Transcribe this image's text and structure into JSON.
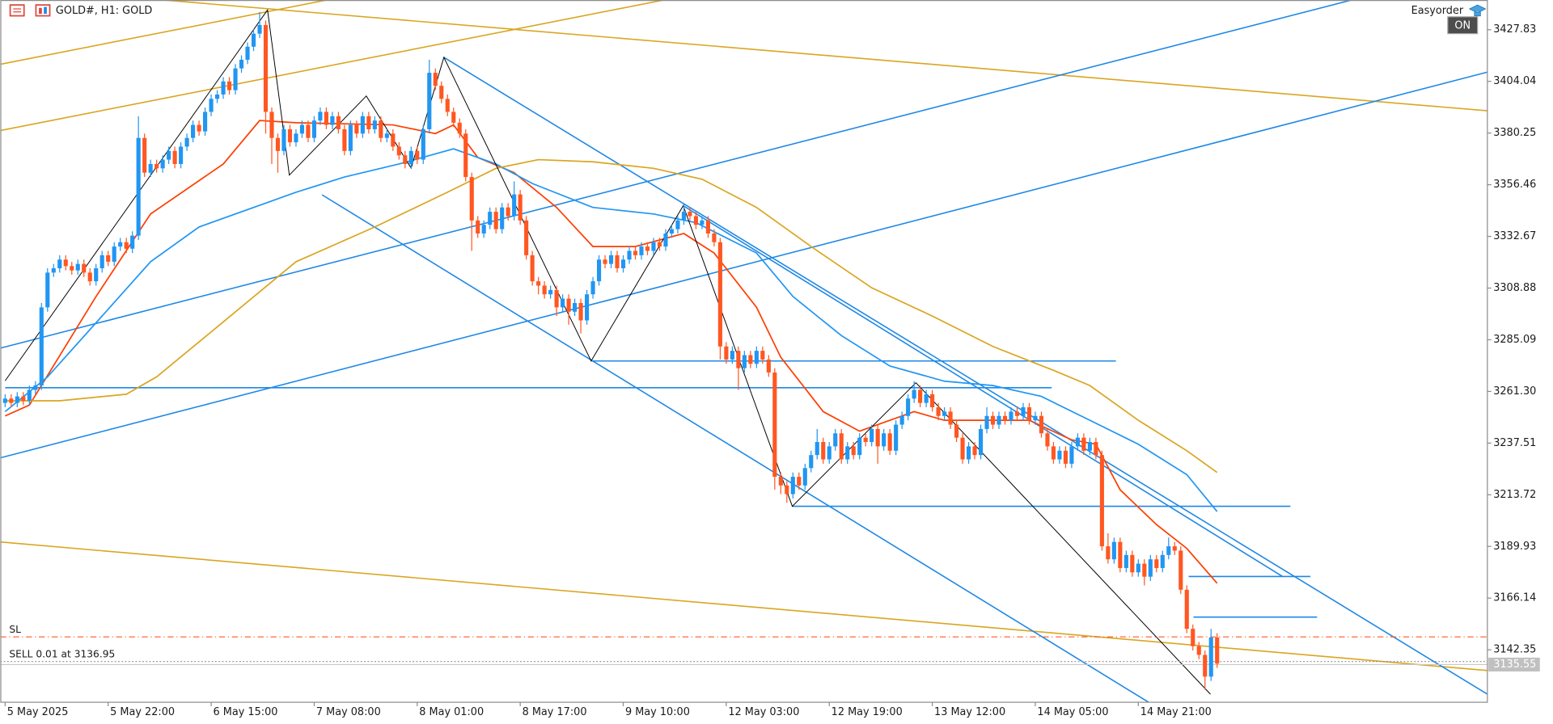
{
  "chart_data": {
    "type": "candlestick",
    "title": "GOLD#, H1:  GOLD",
    "expert": "Easyorder",
    "expert_status": "ON",
    "up_color": "#2196f3",
    "down_color": "#ff5722",
    "xlim": [
      -0.8,
      244.6
    ],
    "ylim": [
      3118.2,
      3441.5
    ],
    "yticks": [
      3427.83,
      3404.04,
      3380.25,
      3356.46,
      3332.67,
      3308.88,
      3285.09,
      {
        "value": 3261.3,
        "label": "3261.30"
      },
      3237.51,
      3213.72,
      3189.93,
      3166.14,
      3142.35
    ],
    "xticks": [
      {
        "value": 0,
        "label": "5 May 2025"
      },
      {
        "value": 17,
        "label": "5 May 22:00"
      },
      {
        "value": 34,
        "label": "6 May 15:00"
      },
      {
        "value": 51,
        "label": "7 May 08:00"
      },
      {
        "value": 68,
        "label": "8 May 01:00"
      },
      {
        "value": 85,
        "label": "8 May 17:00"
      },
      {
        "value": 102,
        "label": "9 May 10:00"
      },
      {
        "value": 119,
        "label": "12 May 03:00"
      },
      {
        "value": 136,
        "label": "12 May 19:00"
      },
      {
        "value": 153,
        "label": "13 May 12:00"
      },
      {
        "value": 170,
        "label": "14 May 05:00"
      },
      {
        "value": 187,
        "label": "14 May 21:00"
      }
    ],
    "current_price": 3135.55,
    "open": [
      3256,
      3258,
      3256,
      3259,
      3257,
      3262,
      3264,
      3300,
      3316,
      3318,
      3322,
      3319,
      3317,
      3320,
      3316,
      3312,
      3318,
      3324,
      3321,
      3328,
      3330,
      3327,
      3333,
      3378,
      3362,
      3366,
      3364,
      3368,
      3372,
      3366,
      3374,
      3378,
      3384,
      3381,
      3390,
      3396,
      3398,
      3404,
      3400,
      3410,
      3414,
      3420,
      3426,
      3430,
      3390,
      3378,
      3372,
      3382,
      3376,
      3380,
      3384,
      3378,
      3386,
      3390,
      3384,
      3388,
      3382,
      3372,
      3384,
      3380,
      3388,
      3382,
      3386,
      3378,
      3380,
      3374,
      3370,
      3366,
      3372,
      3368,
      3382,
      3408,
      3402,
      3396,
      3390,
      3385,
      3380,
      3360,
      3340,
      3334,
      3338,
      3344,
      3336,
      3346,
      3342,
      3352,
      3340,
      3324,
      3312,
      3310,
      3306,
      3308,
      3300,
      3304,
      3298,
      3302,
      3294,
      3306,
      3312,
      3322,
      3320,
      3324,
      3318,
      3322,
      3326,
      3324,
      3328,
      3326,
      3330,
      3328,
      3334,
      3336,
      3340,
      3344,
      3342,
      3338,
      3340,
      3334,
      3330,
      3282,
      3276,
      3280,
      3272,
      3278,
      3274,
      3280,
      3276,
      3270,
      3222,
      3218,
      3214,
      3222,
      3218,
      3226,
      3232,
      3238,
      3230,
      3236,
      3242,
      3230,
      3236,
      3232,
      3240,
      3238,
      3244,
      3236,
      3242,
      3234,
      3246,
      3250,
      3258,
      3262,
      3256,
      3260,
      3254,
      3250,
      3252,
      3246,
      3240,
      3230,
      3236,
      3232,
      3244,
      3250,
      3246,
      3250,
      3248,
      3252,
      3250,
      3254,
      3248,
      3250,
      3242,
      3236,
      3230,
      3234,
      3228,
      3236,
      3240,
      3234,
      3238,
      3232,
      3190,
      3184,
      3192,
      3180,
      3186,
      3178,
      3182,
      3176,
      3184,
      3180,
      3186,
      3190,
      3188,
      3170,
      3152,
      3144,
      3140,
      3130,
      3148
    ],
    "high": [
      3260,
      3260,
      3261,
      3261,
      3264,
      3266,
      3302,
      3318,
      3320,
      3324,
      3324,
      3321,
      3322,
      3322,
      3318,
      3320,
      3326,
      3326,
      3330,
      3332,
      3332,
      3335,
      3388,
      3380,
      3368,
      3368,
      3370,
      3374,
      3374,
      3376,
      3380,
      3386,
      3386,
      3392,
      3398,
      3400,
      3406,
      3406,
      3412,
      3416,
      3422,
      3428,
      3436,
      3432,
      3392,
      3380,
      3384,
      3384,
      3382,
      3386,
      3386,
      3388,
      3392,
      3392,
      3390,
      3390,
      3384,
      3386,
      3386,
      3390,
      3390,
      3388,
      3388,
      3382,
      3382,
      3376,
      3372,
      3374,
      3374,
      3384,
      3414,
      3410,
      3404,
      3398,
      3392,
      3387,
      3382,
      3362,
      3342,
      3340,
      3346,
      3346,
      3348,
      3348,
      3358,
      3354,
      3342,
      3326,
      3314,
      3312,
      3310,
      3310,
      3306,
      3306,
      3304,
      3304,
      3308,
      3314,
      3324,
      3324,
      3326,
      3326,
      3324,
      3328,
      3328,
      3330,
      3330,
      3332,
      3332,
      3336,
      3338,
      3342,
      3348,
      3346,
      3344,
      3342,
      3342,
      3336,
      3332,
      3284,
      3282,
      3282,
      3280,
      3280,
      3282,
      3282,
      3278,
      3272,
      3224,
      3220,
      3224,
      3224,
      3228,
      3234,
      3244,
      3240,
      3238,
      3244,
      3244,
      3238,
      3238,
      3242,
      3242,
      3246,
      3246,
      3244,
      3244,
      3248,
      3252,
      3260,
      3266,
      3264,
      3262,
      3262,
      3256,
      3254,
      3254,
      3248,
      3242,
      3238,
      3238,
      3246,
      3254,
      3252,
      3252,
      3252,
      3254,
      3254,
      3256,
      3256,
      3252,
      3252,
      3244,
      3238,
      3236,
      3236,
      3238,
      3242,
      3242,
      3240,
      3240,
      3234,
      3196,
      3194,
      3194,
      3188,
      3188,
      3184,
      3184,
      3186,
      3186,
      3188,
      3194,
      3192,
      3190,
      3172,
      3154,
      3146,
      3142,
      3152,
      3150
    ],
    "low": [
      3254,
      3254,
      3254,
      3255,
      3255,
      3260,
      3262,
      3298,
      3314,
      3316,
      3317,
      3315,
      3315,
      3314,
      3310,
      3310,
      3316,
      3319,
      3319,
      3326,
      3325,
      3325,
      3331,
      3360,
      3360,
      3362,
      3362,
      3366,
      3364,
      3364,
      3372,
      3376,
      3379,
      3379,
      3388,
      3394,
      3396,
      3398,
      3398,
      3408,
      3412,
      3418,
      3424,
      3380,
      3366,
      3362,
      3370,
      3374,
      3374,
      3378,
      3376,
      3376,
      3384,
      3382,
      3382,
      3380,
      3370,
      3370,
      3378,
      3378,
      3380,
      3380,
      3376,
      3376,
      3372,
      3368,
      3364,
      3364,
      3366,
      3366,
      3380,
      3400,
      3394,
      3388,
      3383,
      3378,
      3358,
      3326,
      3332,
      3332,
      3336,
      3334,
      3334,
      3340,
      3340,
      3338,
      3322,
      3310,
      3306,
      3304,
      3304,
      3296,
      3298,
      3292,
      3296,
      3288,
      3292,
      3304,
      3310,
      3318,
      3318,
      3316,
      3316,
      3320,
      3322,
      3322,
      3324,
      3324,
      3326,
      3326,
      3332,
      3334,
      3338,
      3340,
      3336,
      3336,
      3332,
      3328,
      3276,
      3274,
      3274,
      3262,
      3270,
      3272,
      3272,
      3274,
      3268,
      3216,
      3214,
      3210,
      3212,
      3216,
      3216,
      3224,
      3230,
      3228,
      3228,
      3234,
      3228,
      3228,
      3230,
      3230,
      3236,
      3236,
      3228,
      3234,
      3232,
      3232,
      3244,
      3248,
      3256,
      3254,
      3254,
      3252,
      3248,
      3248,
      3244,
      3238,
      3228,
      3228,
      3230,
      3230,
      3242,
      3244,
      3244,
      3246,
      3246,
      3248,
      3248,
      3246,
      3246,
      3240,
      3234,
      3228,
      3228,
      3226,
      3226,
      3234,
      3232,
      3232,
      3230,
      3188,
      3182,
      3182,
      3178,
      3178,
      3176,
      3176,
      3172,
      3174,
      3178,
      3178,
      3184,
      3186,
      3168,
      3150,
      3142,
      3138,
      3124,
      3128,
      3134
    ],
    "close": [
      3258,
      3256,
      3259,
      3257,
      3262,
      3264,
      3300,
      3316,
      3318,
      3322,
      3319,
      3317,
      3320,
      3316,
      3312,
      3318,
      3324,
      3321,
      3328,
      3330,
      3327,
      3333,
      3378,
      3362,
      3366,
      3364,
      3368,
      3372,
      3366,
      3374,
      3378,
      3384,
      3381,
      3390,
      3396,
      3398,
      3404,
      3400,
      3410,
      3414,
      3420,
      3426,
      3430,
      3390,
      3378,
      3372,
      3382,
      3376,
      3380,
      3384,
      3378,
      3386,
      3390,
      3384,
      3388,
      3382,
      3372,
      3384,
      3380,
      3388,
      3382,
      3386,
      3378,
      3380,
      3374,
      3370,
      3366,
      3372,
      3368,
      3382,
      3408,
      3402,
      3396,
      3390,
      3385,
      3380,
      3360,
      3340,
      3334,
      3338,
      3344,
      3336,
      3346,
      3342,
      3352,
      3340,
      3324,
      3312,
      3310,
      3306,
      3308,
      3300,
      3304,
      3298,
      3302,
      3294,
      3306,
      3312,
      3322,
      3320,
      3324,
      3318,
      3322,
      3326,
      3324,
      3328,
      3326,
      3330,
      3328,
      3334,
      3336,
      3340,
      3344,
      3342,
      3338,
      3340,
      3334,
      3330,
      3282,
      3276,
      3280,
      3272,
      3278,
      3274,
      3280,
      3276,
      3270,
      3222,
      3218,
      3214,
      3222,
      3218,
      3226,
      3232,
      3238,
      3230,
      3236,
      3242,
      3230,
      3236,
      3232,
      3240,
      3238,
      3244,
      3236,
      3242,
      3234,
      3246,
      3250,
      3258,
      3262,
      3256,
      3260,
      3254,
      3250,
      3252,
      3246,
      3240,
      3230,
      3236,
      3232,
      3244,
      3250,
      3246,
      3250,
      3248,
      3252,
      3250,
      3254,
      3248,
      3250,
      3242,
      3236,
      3230,
      3234,
      3228,
      3236,
      3240,
      3234,
      3238,
      3232,
      3190,
      3184,
      3192,
      3180,
      3186,
      3178,
      3182,
      3176,
      3184,
      3180,
      3186,
      3190,
      3188,
      3170,
      3152,
      3144,
      3140,
      3130,
      3148,
      3136
    ],
    "moving_averages": [
      {
        "color": "#ff3d00",
        "x": [
          0,
          4,
          15,
          24,
          36,
          42,
          48,
          64,
          71,
          74,
          78,
          84,
          91,
          97,
          104,
          112,
          117,
          124,
          128,
          135,
          141,
          150,
          155,
          163,
          169,
          176,
          180,
          184,
          190,
          195,
          200
        ],
        "values": [
          3250,
          3255,
          3305,
          3343,
          3366,
          3386,
          3385,
          3384,
          3380,
          3384,
          3369,
          3362,
          3346,
          3328,
          3328,
          3334,
          3325,
          3300,
          3277,
          3252,
          3243,
          3252,
          3248,
          3248,
          3248,
          3239,
          3237,
          3216,
          3200,
          3189,
          3173
        ]
      },
      {
        "color": "#2196f3",
        "x": [
          0,
          7,
          16,
          24,
          32,
          42,
          48,
          56,
          65,
          74,
          81,
          87,
          97,
          107,
          114,
          124,
          130,
          138,
          146,
          155,
          163,
          171,
          179,
          187,
          195,
          200
        ],
        "values": [
          3252,
          3268,
          3296,
          3321,
          3337,
          3347,
          3353,
          3360,
          3366,
          3373,
          3366,
          3357,
          3346,
          3343,
          3339,
          3325,
          3305,
          3287,
          3273,
          3266,
          3264,
          3259,
          3248,
          3237,
          3223,
          3206
        ]
      },
      {
        "color": "#daa520",
        "x": [
          0,
          9,
          20,
          25,
          35,
          48,
          61,
          73,
          81,
          88,
          97,
          107,
          115,
          124,
          133,
          143,
          153,
          163,
          173,
          179,
          187,
          195,
          200
        ],
        "values": [
          3257,
          3257,
          3260,
          3268,
          3291,
          3321,
          3337,
          3353,
          3364,
          3368,
          3367,
          3364,
          3359,
          3346,
          3328,
          3309,
          3296,
          3282,
          3271,
          3264,
          3248,
          3234,
          3224
        ]
      }
    ],
    "zigzag": {
      "color": "#000000",
      "x": [
        0,
        43.3,
        46.9,
        59.6,
        67.0,
        72.4,
        96.7,
        111.9,
        129.9,
        150.3,
        198.9
      ],
      "values": [
        3266.2,
        3436.9,
        3360.9,
        3397.3,
        3364.1,
        3415.1,
        3275.3,
        3346.8,
        3208.4,
        3265.3,
        3121.9
      ]
    },
    "trendlines": [
      {
        "color": "#daa520",
        "x": [
          -0.8,
          53.1
        ],
        "values": [
          3411.9,
          3441.5
        ]
      },
      {
        "color": "#daa520",
        "x": [
          -0.8,
          108.7
        ],
        "values": [
          3381.4,
          3441.5
        ]
      },
      {
        "color": "#daa520",
        "x": [
          26.1,
          244.6
        ],
        "values": [
          3441.5,
          3390.5
        ]
      },
      {
        "color": "#daa520",
        "x": [
          -0.8,
          244.6
        ],
        "values": [
          3192.0,
          3132.8
        ]
      },
      {
        "color": "#1e88e5",
        "x": [
          -0.8,
          222.2
        ],
        "values": [
          3281.2,
          3441.5
        ]
      },
      {
        "color": "#1e88e5",
        "x": [
          -0.8,
          244.6
        ],
        "values": [
          3230.7,
          3408.3
        ]
      },
      {
        "color": "#1e88e5",
        "x": [
          72.4,
          244.6
        ],
        "values": [
          3415.1,
          3121.9
        ]
      },
      {
        "color": "#1e88e5",
        "x": [
          52.3,
          188.7
        ],
        "values": [
          3351.8,
          3118.2
        ]
      },
      {
        "color": "#1e88e5",
        "x": [
          111.9,
          210.8
        ],
        "values": [
          3346.8,
          3176.1
        ]
      },
      {
        "color": "#1e88e5",
        "x": [
          96.7,
          183.3
        ],
        "values": [
          3275.3,
          3275.3
        ]
      },
      {
        "color": "#1e88e5",
        "x": [
          0,
          172.7
        ],
        "values": [
          3263.0,
          3263.0
        ]
      },
      {
        "color": "#1e88e5",
        "x": [
          129.9,
          212.1
        ],
        "values": [
          3208.4,
          3208.4
        ]
      },
      {
        "color": "#1e88e5",
        "x": [
          195.3,
          215.4
        ],
        "values": [
          3176.1,
          3176.1
        ]
      },
      {
        "color": "#1e88e5",
        "x": [
          196.1,
          216.5
        ],
        "values": [
          3157.4,
          3157.4
        ]
      }
    ],
    "order_lines": [
      {
        "label": "SL",
        "value": 3148.3,
        "color": "#ff5722"
      },
      {
        "label": "SELL 0.01 at 3136.95",
        "value": 3136.95,
        "color": "#8a8a8a"
      }
    ]
  }
}
